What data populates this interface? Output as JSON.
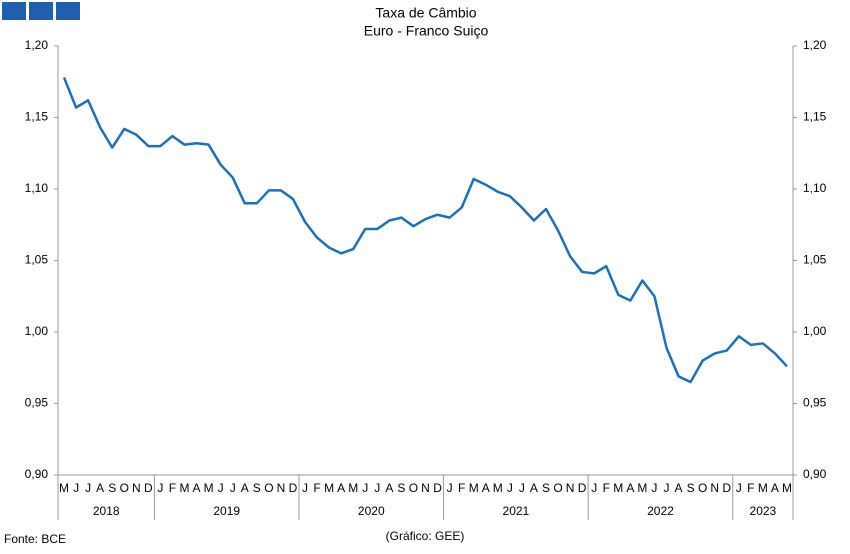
{
  "chart_data": {
    "type": "line",
    "title": "Taxa de Câmbio",
    "subtitle": "Euro - Franco Suiço",
    "source": "Fonte: BCE",
    "credit": "(Gráfico: GEE)",
    "categories": [
      "M",
      "J",
      "J",
      "A",
      "S",
      "O",
      "N",
      "D",
      "J",
      "F",
      "M",
      "A",
      "M",
      "J",
      "J",
      "A",
      "S",
      "O",
      "N",
      "D",
      "J",
      "F",
      "M",
      "A",
      "M",
      "J",
      "J",
      "A",
      "S",
      "O",
      "N",
      "D",
      "J",
      "F",
      "M",
      "A",
      "M",
      "J",
      "J",
      "A",
      "S",
      "O",
      "N",
      "D",
      "J",
      "F",
      "M",
      "A",
      "M",
      "J",
      "J",
      "A",
      "S",
      "O",
      "N",
      "D",
      "J",
      "F",
      "M",
      "A",
      "M"
    ],
    "year_labels": [
      "2018",
      "2019",
      "2020",
      "2021",
      "2022",
      "2023"
    ],
    "series": [
      {
        "color": "#1f6fb4",
        "values": [
          1.178,
          1.157,
          1.162,
          1.143,
          1.129,
          1.142,
          1.138,
          1.13,
          1.13,
          1.137,
          1.131,
          1.132,
          1.131,
          1.117,
          1.108,
          1.09,
          1.09,
          1.099,
          1.099,
          1.093,
          1.077,
          1.066,
          1.059,
          1.055,
          1.058,
          1.072,
          1.072,
          1.078,
          1.08,
          1.074,
          1.079,
          1.082,
          1.08,
          1.087,
          1.107,
          1.103,
          1.098,
          1.095,
          1.087,
          1.078,
          1.086,
          1.071,
          1.053,
          1.042,
          1.041,
          1.046,
          1.026,
          1.022,
          1.036,
          1.025,
          0.989,
          0.969,
          0.965,
          0.98,
          0.985,
          0.987,
          0.997,
          0.991,
          0.992,
          0.985,
          0.976
        ]
      }
    ],
    "ylim": [
      0.9,
      1.2
    ],
    "yticks": [
      {
        "value": 0.9,
        "label": "0,90"
      },
      {
        "value": 0.95,
        "label": "0,95"
      },
      {
        "value": 1.0,
        "label": "1,00"
      },
      {
        "value": 1.05,
        "label": "1,05"
      },
      {
        "value": 1.1,
        "label": "1,10"
      },
      {
        "value": 1.15,
        "label": "1,15"
      },
      {
        "value": 1.2,
        "label": "1,20"
      }
    ],
    "grid": false
  }
}
